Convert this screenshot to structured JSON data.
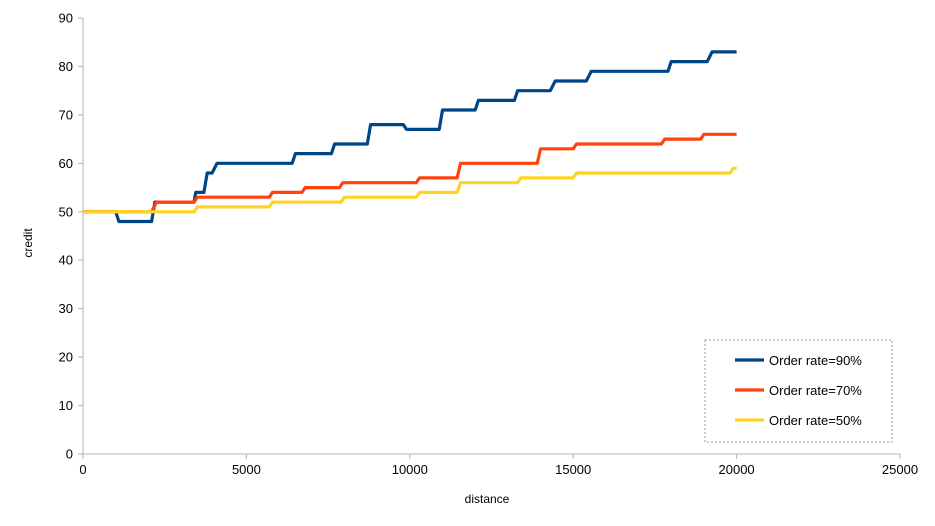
{
  "chart_data": {
    "type": "line",
    "title": "",
    "xlabel": "distance",
    "ylabel": "credit",
    "xlim": [
      0,
      25000
    ],
    "ylim": [
      0,
      90
    ],
    "xticks": [
      0,
      5000,
      10000,
      15000,
      20000,
      25000
    ],
    "yticks": [
      0,
      10,
      20,
      30,
      40,
      50,
      60,
      70,
      80,
      90
    ],
    "grid": false,
    "legend_position": "bottom-right",
    "series": [
      {
        "name": "Order rate=90%",
        "color": "#004586",
        "points": [
          [
            0,
            50
          ],
          [
            1000,
            50
          ],
          [
            1100,
            48
          ],
          [
            2100,
            48
          ],
          [
            2200,
            52
          ],
          [
            3400,
            52
          ],
          [
            3450,
            54
          ],
          [
            3700,
            54
          ],
          [
            3800,
            58
          ],
          [
            3950,
            58
          ],
          [
            4100,
            60
          ],
          [
            6400,
            60
          ],
          [
            6500,
            62
          ],
          [
            7600,
            62
          ],
          [
            7700,
            64
          ],
          [
            8700,
            64
          ],
          [
            8800,
            68
          ],
          [
            9800,
            68
          ],
          [
            9900,
            67
          ],
          [
            10900,
            67
          ],
          [
            11000,
            71
          ],
          [
            12000,
            71
          ],
          [
            12100,
            73
          ],
          [
            13200,
            73
          ],
          [
            13300,
            75
          ],
          [
            14300,
            75
          ],
          [
            14450,
            77
          ],
          [
            15400,
            77
          ],
          [
            15550,
            79
          ],
          [
            17900,
            79
          ],
          [
            18000,
            81
          ],
          [
            19100,
            81
          ],
          [
            19250,
            83
          ],
          [
            20000,
            83
          ]
        ]
      },
      {
        "name": "Order rate=70%",
        "color": "#ff420e",
        "points": [
          [
            0,
            50
          ],
          [
            2100,
            50
          ],
          [
            2250,
            52
          ],
          [
            3400,
            52
          ],
          [
            3500,
            53
          ],
          [
            5700,
            53
          ],
          [
            5800,
            54
          ],
          [
            6700,
            54
          ],
          [
            6800,
            55
          ],
          [
            7850,
            55
          ],
          [
            7950,
            56
          ],
          [
            10200,
            56
          ],
          [
            10300,
            57
          ],
          [
            11450,
            57
          ],
          [
            11550,
            60
          ],
          [
            13900,
            60
          ],
          [
            14000,
            63
          ],
          [
            15000,
            63
          ],
          [
            15100,
            64
          ],
          [
            17700,
            64
          ],
          [
            17800,
            65
          ],
          [
            18900,
            65
          ],
          [
            19000,
            66
          ],
          [
            20000,
            66
          ]
        ]
      },
      {
        "name": "Order rate=50%",
        "color": "#ffd320",
        "points": [
          [
            0,
            50
          ],
          [
            3400,
            50
          ],
          [
            3500,
            51
          ],
          [
            5700,
            51
          ],
          [
            5800,
            52
          ],
          [
            7900,
            52
          ],
          [
            8000,
            53
          ],
          [
            10200,
            53
          ],
          [
            10300,
            54
          ],
          [
            11450,
            54
          ],
          [
            11550,
            56
          ],
          [
            13300,
            56
          ],
          [
            13400,
            57
          ],
          [
            15000,
            57
          ],
          [
            15100,
            58
          ],
          [
            19800,
            58
          ],
          [
            19900,
            59
          ],
          [
            20000,
            59
          ]
        ]
      }
    ]
  }
}
